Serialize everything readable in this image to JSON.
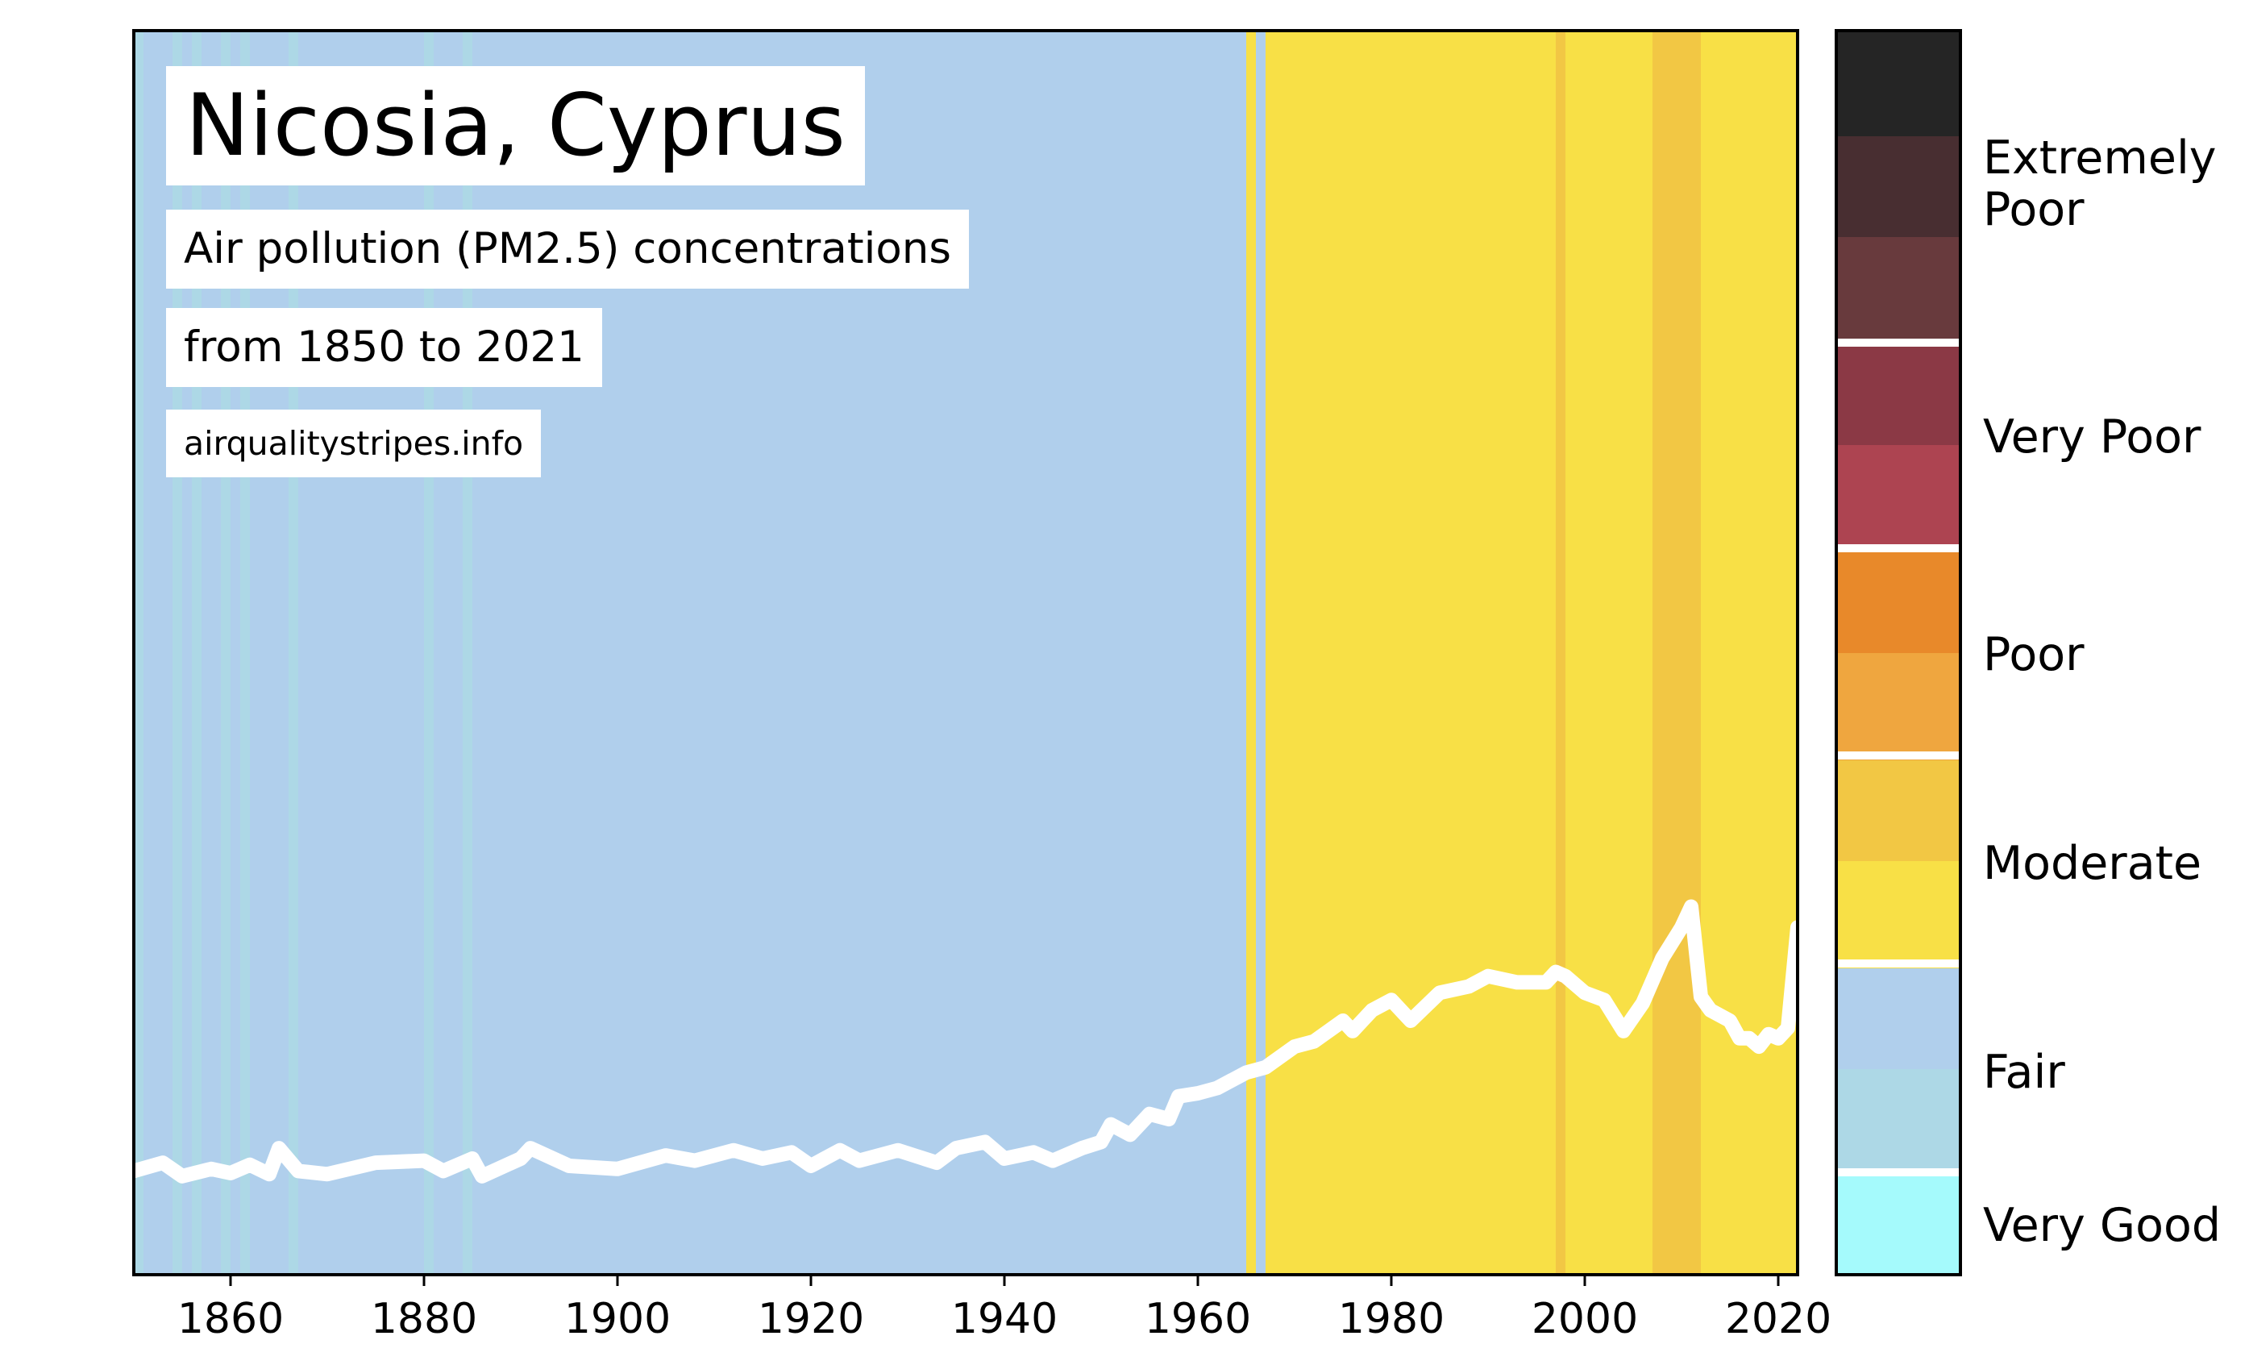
{
  "title": "Nicosia, Cyprus",
  "subtitle": "Air pollution (PM2.5) concentrations",
  "range_text": "from 1850 to 2021",
  "source": "airqualitystripes.info",
  "colors": {
    "very_good": "#a5fafc",
    "fair_light": "#add8e6",
    "fair": "#b0cfec",
    "moderate_low": "#f8e046",
    "moderate_high": "#f2c744",
    "poor_low": "#efa63f",
    "poor_high": "#e8892a",
    "very_poor_low": "#ad4451",
    "very_poor_high": "#8b3945",
    "extremely_poor_1": "#683a3d",
    "extremely_poor_2": "#482e31",
    "extremely_poor_3": "#252525",
    "line": "#ffffff"
  },
  "chart_data": {
    "type": "line",
    "x_ticks": [
      1860,
      1880,
      1900,
      1920,
      1940,
      1960,
      1980,
      2000,
      2020
    ],
    "xlim": [
      1850,
      2022
    ],
    "ylim": [
      0,
      12
    ],
    "stripes_legend": [
      {
        "label": "Very Good",
        "level": "very_good"
      },
      {
        "label": "Fair",
        "level": "fair"
      },
      {
        "label": "Moderate",
        "level": "moderate"
      },
      {
        "label": "Poor",
        "level": "poor"
      },
      {
        "label": "Very Poor",
        "level": "very_poor"
      },
      {
        "label": "Extremely\nPoor",
        "level": "extremely_poor"
      }
    ],
    "stripes": [
      {
        "from": 1850,
        "to": 1851,
        "color": "fair_light"
      },
      {
        "from": 1854,
        "to": 1855,
        "color": "fair_light"
      },
      {
        "from": 1856,
        "to": 1857,
        "color": "fair_light"
      },
      {
        "from": 1859,
        "to": 1860,
        "color": "fair_light"
      },
      {
        "from": 1861,
        "to": 1862,
        "color": "fair_light"
      },
      {
        "from": 1866,
        "to": 1867,
        "color": "fair_light"
      },
      {
        "from": 1880,
        "to": 1881,
        "color": "fair_light"
      },
      {
        "from": 1884,
        "to": 1885,
        "color": "fair_light"
      },
      {
        "from": 1965,
        "to": 1966,
        "color": "moderate_low"
      },
      {
        "from": 1967,
        "to": 2022,
        "color": "moderate_low"
      },
      {
        "from": 1997,
        "to": 1998,
        "color": "moderate_high"
      },
      {
        "from": 2007,
        "to": 2012,
        "color": "moderate_high"
      }
    ],
    "series": [
      {
        "values": [
          [
            1850,
            1.0
          ],
          [
            1853,
            1.08
          ],
          [
            1855,
            0.95
          ],
          [
            1858,
            1.02
          ],
          [
            1860,
            0.98
          ],
          [
            1862,
            1.06
          ],
          [
            1864,
            0.97
          ],
          [
            1865,
            1.22
          ],
          [
            1867,
            1.0
          ],
          [
            1870,
            0.97
          ],
          [
            1875,
            1.08
          ],
          [
            1880,
            1.1
          ],
          [
            1882,
            1.0
          ],
          [
            1885,
            1.12
          ],
          [
            1886,
            0.95
          ],
          [
            1890,
            1.12
          ],
          [
            1891,
            1.22
          ],
          [
            1895,
            1.05
          ],
          [
            1900,
            1.02
          ],
          [
            1905,
            1.15
          ],
          [
            1908,
            1.1
          ],
          [
            1912,
            1.2
          ],
          [
            1915,
            1.12
          ],
          [
            1918,
            1.18
          ],
          [
            1920,
            1.05
          ],
          [
            1923,
            1.2
          ],
          [
            1925,
            1.1
          ],
          [
            1929,
            1.2
          ],
          [
            1933,
            1.08
          ],
          [
            1935,
            1.22
          ],
          [
            1938,
            1.28
          ],
          [
            1940,
            1.12
          ],
          [
            1943,
            1.18
          ],
          [
            1945,
            1.1
          ],
          [
            1948,
            1.22
          ],
          [
            1950,
            1.28
          ],
          [
            1951,
            1.45
          ],
          [
            1953,
            1.35
          ],
          [
            1955,
            1.55
          ],
          [
            1957,
            1.5
          ],
          [
            1958,
            1.72
          ],
          [
            1960,
            1.75
          ],
          [
            1962,
            1.8
          ],
          [
            1965,
            1.95
          ],
          [
            1967,
            2.0
          ],
          [
            1970,
            2.2
          ],
          [
            1972,
            2.25
          ],
          [
            1975,
            2.45
          ],
          [
            1976,
            2.35
          ],
          [
            1978,
            2.55
          ],
          [
            1980,
            2.65
          ],
          [
            1982,
            2.45
          ],
          [
            1985,
            2.72
          ],
          [
            1988,
            2.78
          ],
          [
            1990,
            2.88
          ],
          [
            1993,
            2.82
          ],
          [
            1996,
            2.82
          ],
          [
            1997,
            2.92
          ],
          [
            1998,
            2.88
          ],
          [
            2000,
            2.72
          ],
          [
            2002,
            2.65
          ],
          [
            2004,
            2.35
          ],
          [
            2006,
            2.62
          ],
          [
            2008,
            3.05
          ],
          [
            2010,
            3.35
          ],
          [
            2011,
            3.55
          ],
          [
            2012,
            2.68
          ],
          [
            2013,
            2.55
          ],
          [
            2015,
            2.45
          ],
          [
            2016,
            2.28
          ],
          [
            2017,
            2.28
          ],
          [
            2018,
            2.2
          ],
          [
            2019,
            2.32
          ],
          [
            2020,
            2.28
          ],
          [
            2021,
            2.38
          ],
          [
            2022,
            3.35
          ]
        ]
      }
    ]
  }
}
